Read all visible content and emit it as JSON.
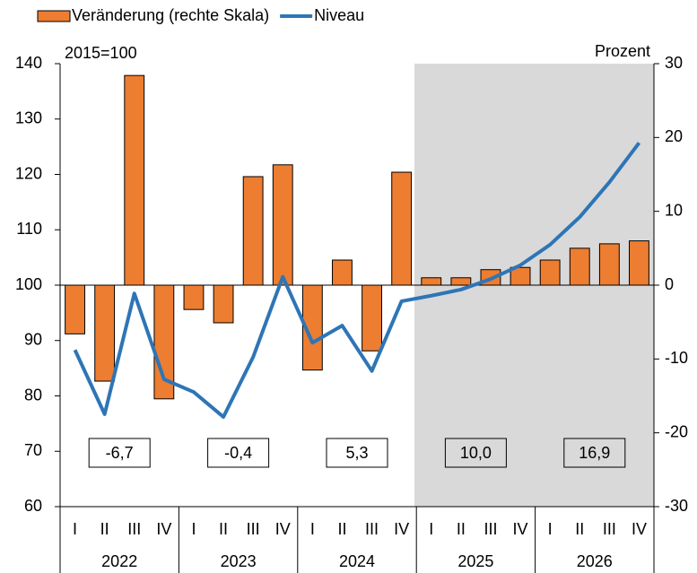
{
  "chart_data": {
    "type": "bar",
    "categories": [
      "I",
      "II",
      "III",
      "IV",
      "I",
      "II",
      "III",
      "IV",
      "I",
      "II",
      "III",
      "IV",
      "I",
      "II",
      "III",
      "IV",
      "I",
      "II",
      "III",
      "IV"
    ],
    "years": [
      "2022",
      "2023",
      "2024",
      "2025",
      "2026"
    ],
    "ylabel": "2015=100",
    "y2label": "Prozent",
    "ylim": [
      60,
      140
    ],
    "yticks": [
      60,
      70,
      80,
      90,
      100,
      110,
      120,
      130,
      140
    ],
    "y2lim": [
      -30,
      30
    ],
    "y2ticks": [
      -30,
      -20,
      -10,
      0,
      10,
      20,
      30
    ],
    "series": [
      {
        "name": "Veränderung (rechte Skala)",
        "type": "bar",
        "axis": "y2",
        "color": "#ED7D31",
        "values": [
          -6.6,
          -13.0,
          28.4,
          -15.4,
          -3.3,
          -5.1,
          14.7,
          16.3,
          -11.5,
          3.4,
          -8.9,
          15.3,
          1.0,
          1.0,
          2.1,
          2.4,
          3.4,
          5.0,
          5.6,
          6.0
        ]
      },
      {
        "name": "Niveau",
        "type": "line",
        "color": "#2E75B6",
        "values": [
          88.3,
          76.7,
          98.5,
          83.0,
          80.7,
          76.2,
          87.0,
          101.5,
          89.6,
          92.7,
          84.5,
          97.1,
          98.1,
          99.2,
          101.1,
          103.6,
          107.3,
          112.3,
          118.6,
          125.7
        ]
      }
    ],
    "annotations": [
      "-6,7",
      "-0,4",
      "5,3",
      "10,0",
      "16,9"
    ]
  }
}
